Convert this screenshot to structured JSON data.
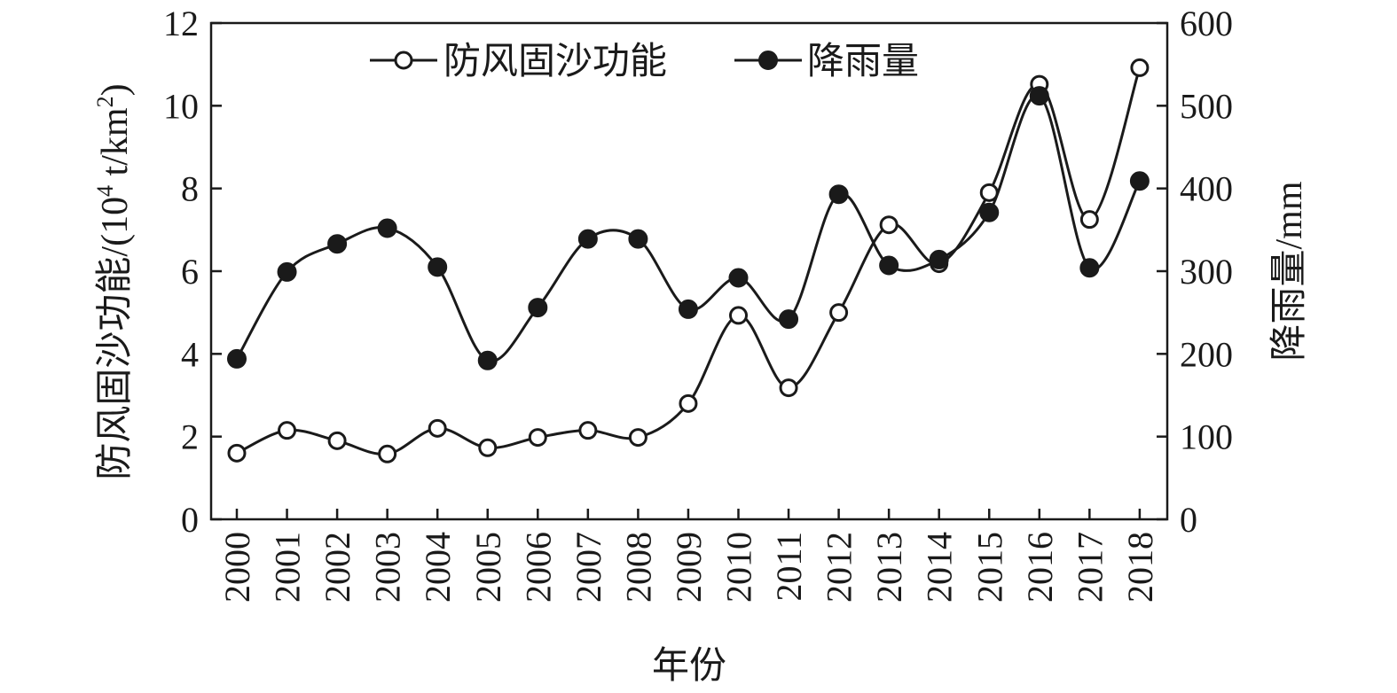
{
  "chart_data": {
    "type": "line",
    "xlabel": "年份",
    "ylabel_left": "防风固沙功能/(10",
    "ylabel_left_sup1": "4",
    "ylabel_left_mid": " t/km",
    "ylabel_left_sup2": "2",
    "ylabel_left_end": ")",
    "ylabel_right": "降雨量/mm",
    "x": [
      "2000",
      "2001",
      "2002",
      "2003",
      "2004",
      "2005",
      "2006",
      "2007",
      "2008",
      "2009",
      "2010",
      "2011",
      "2012",
      "2013",
      "2014",
      "2015",
      "2016",
      "2017",
      "2018"
    ],
    "ylim_left": [
      0,
      12
    ],
    "yticks_left": [
      "0",
      "2",
      "4",
      "6",
      "8",
      "10",
      "12"
    ],
    "ylim_right": [
      0,
      600
    ],
    "yticks_right": [
      "0",
      "100",
      "200",
      "300",
      "400",
      "500",
      "600"
    ],
    "legend_position": "top",
    "series": [
      {
        "name": "防风固沙功能",
        "axis": "left",
        "marker": "open-circle",
        "values": [
          1.6,
          2.15,
          1.9,
          1.58,
          2.2,
          1.73,
          1.98,
          2.15,
          1.98,
          2.8,
          4.93,
          3.18,
          5.0,
          7.12,
          6.18,
          7.9,
          10.52,
          7.25,
          10.92
        ]
      },
      {
        "name": "降雨量",
        "axis": "right",
        "marker": "filled-circle",
        "values": [
          194,
          299,
          333,
          352,
          305,
          192,
          256,
          339,
          339,
          254,
          292,
          242,
          393,
          307,
          314,
          371,
          512,
          304,
          409
        ]
      }
    ]
  }
}
